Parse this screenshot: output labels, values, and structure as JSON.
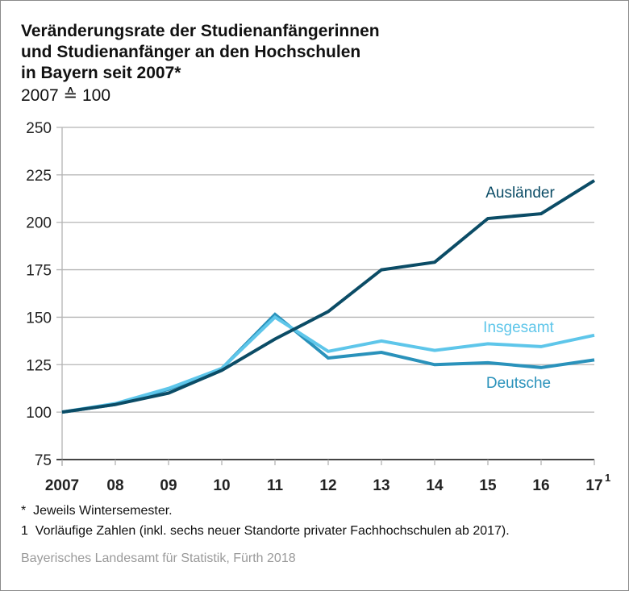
{
  "chart_data": {
    "type": "line",
    "title": "Veränderungsrate der Studienanfängerinnen und Studienanfänger an den Hochschulen in Bayern seit 2007*",
    "title_lines": [
      "Veränderungsrate der Studienanfängerinnen",
      "und Studienanfänger an den Hochschulen",
      "in Bayern seit 2007*"
    ],
    "subtitle": "2007 ≙ 100",
    "xlabel": "",
    "ylabel": "",
    "x": [
      "2007",
      "08",
      "09",
      "10",
      "11",
      "12",
      "13",
      "14",
      "15",
      "16",
      "17"
    ],
    "x_superscripts": {
      "17": "1"
    },
    "ylim": [
      75,
      250
    ],
    "yticks": [
      75,
      100,
      125,
      150,
      175,
      200,
      225,
      250
    ],
    "grid": true,
    "legend": "inline labels near line ends",
    "series": [
      {
        "name": "Ausländer",
        "color": "#0b4c66",
        "values": [
          100,
          104,
          110,
          122,
          138.5,
          153,
          175,
          179,
          202,
          204.5,
          222
        ]
      },
      {
        "name": "Insgesamt",
        "color": "#5ec6ea",
        "values": [
          100,
          104.5,
          112.5,
          123,
          150,
          132,
          137.5,
          132.5,
          136,
          134.5,
          140.5
        ]
      },
      {
        "name": "Deutsche",
        "color": "#2a92bb",
        "values": [
          100,
          104,
          112,
          123,
          151.5,
          128.5,
          131.5,
          125,
          126,
          123.5,
          127.5
        ]
      }
    ]
  },
  "notes": [
    {
      "marker": "*",
      "text": "Jeweils Wintersemester."
    },
    {
      "marker": "1",
      "text": "Vorläufige Zahlen (inkl. sechs neuer Standorte privater Fachhochschulen ab 2017)."
    }
  ],
  "source": "Bayerisches Landesamt für Statistik, Fürth 2018",
  "colors": {
    "grid": "#b4b4b4",
    "axis": "#444444"
  }
}
